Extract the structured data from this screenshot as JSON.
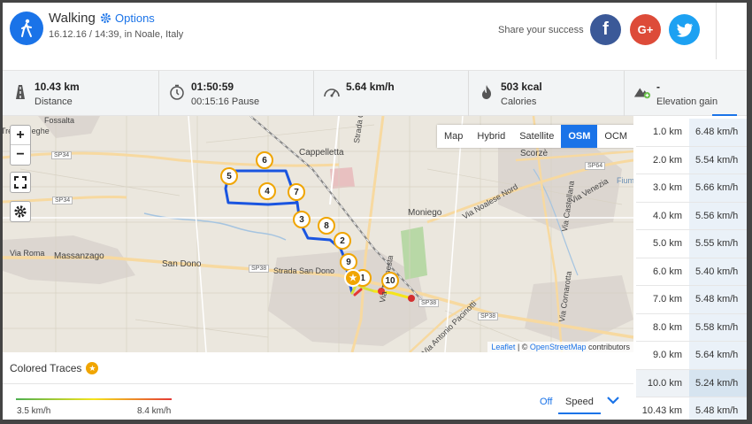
{
  "activity": {
    "title": "Walking",
    "options_label": "Options",
    "subtitle": "16.12.16 / 14:39, in Noale, Italy"
  },
  "share": {
    "text": "Share your success",
    "facebook": "f",
    "google": "G+"
  },
  "stats": [
    {
      "icon": "road-icon",
      "value": "10.43 km",
      "label": "Distance"
    },
    {
      "icon": "clock-icon",
      "value": "01:50:59",
      "label": "00:15:16 Pause"
    },
    {
      "icon": "speedometer-icon",
      "value": "5.64 km/h",
      "label": ""
    },
    {
      "icon": "flame-icon",
      "value": "503 kcal",
      "label": "Calories"
    },
    {
      "icon": "mountain-icon",
      "value": "-",
      "label": "Elevation gain"
    }
  ],
  "map": {
    "layers": [
      "Map",
      "Hybrid",
      "Satellite",
      "OSM",
      "OCM"
    ],
    "active_layer": "OSM",
    "zoom_in": "+",
    "zoom_out": "−",
    "attribution_leaflet": "Leaflet",
    "attribution_sep": " | © ",
    "attribution_osm": "OpenStreetMap",
    "attribution_tail": " contributors",
    "towns": [
      "Fossalta",
      "Trebaseleghe",
      "Cappelletta",
      "Scorzè",
      "Moniego",
      "Massanzago",
      "San Dono",
      "Via Roma",
      "Strada San Dono",
      "Strada Crojarona",
      "Via Noalese Nord",
      "Via Castellana",
      "Via Cornarotta",
      "Via Venezia",
      "Via Antonio Pacinotti",
      "Via Tempesta",
      "Fiume"
    ],
    "roads": [
      "SP34",
      "SP34",
      "SP38",
      "SP38",
      "SP38",
      "SP64"
    ],
    "markers": [
      "5",
      "6",
      "4",
      "7",
      "3",
      "8",
      "2",
      "9",
      "10",
      "1"
    ]
  },
  "traces": {
    "title": "Colored Traces",
    "min_label": "3.5 km/h",
    "max_label": "8.4 km/h",
    "off_label": "Off",
    "mode": "Speed"
  },
  "splits": [
    {
      "km": "1.0 km",
      "speed": "6.48 km/h"
    },
    {
      "km": "2.0 km",
      "speed": "5.54 km/h"
    },
    {
      "km": "3.0 km",
      "speed": "5.66 km/h"
    },
    {
      "km": "4.0 km",
      "speed": "5.56 km/h"
    },
    {
      "km": "5.0 km",
      "speed": "5.55 km/h"
    },
    {
      "km": "6.0 km",
      "speed": "5.40 km/h"
    },
    {
      "km": "7.0 km",
      "speed": "5.48 km/h"
    },
    {
      "km": "8.0 km",
      "speed": "5.58 km/h"
    },
    {
      "km": "9.0 km",
      "speed": "5.64 km/h"
    },
    {
      "km": "10.0 km",
      "speed": "5.24 km/h"
    },
    {
      "km": "10.43 km",
      "speed": "5.48 km/h"
    }
  ],
  "colors": {
    "accent": "#1a73e8",
    "marker": "#f0a500",
    "route": "#1a55e0"
  }
}
